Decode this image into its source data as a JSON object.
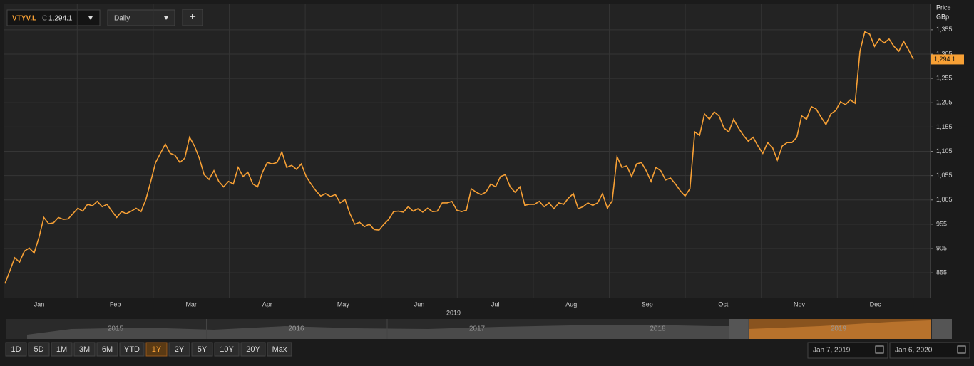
{
  "toolbar": {
    "ticker": "VTYV.L",
    "price_prefix": "C",
    "price": "1,294.1",
    "interval": "Daily",
    "add": "+"
  },
  "chart_data": {
    "type": "line",
    "y_axis_label": [
      "Price",
      "GBp"
    ],
    "x_labels": [
      "Jan",
      "Feb",
      "Mar",
      "Apr",
      "May",
      "Jun",
      "Jul",
      "Aug",
      "Sep",
      "Oct",
      "Nov",
      "Dec"
    ],
    "x_year": "2019",
    "ylim": [
      804,
      1409
    ],
    "yticks": [
      855,
      905,
      955,
      {
        "value": 1005,
        "label": "1,005"
      },
      {
        "value": 1055,
        "label": "1,055"
      },
      {
        "value": 1105,
        "label": "1,105"
      },
      {
        "value": 1155,
        "label": "1,155"
      },
      {
        "value": 1205,
        "label": "1,205"
      },
      {
        "value": 1255,
        "label": "1,255"
      },
      {
        "value": 1305,
        "label": "1,305"
      },
      {
        "value": 1355,
        "label": "1,355"
      }
    ],
    "grid": true,
    "last_label": "1,294.1",
    "series": [
      {
        "name": "VTYV.L",
        "color": "#f7a035",
        "values": [
          833,
          859,
          886,
          877,
          900,
          906,
          896,
          928,
          969,
          956,
          958,
          969,
          965,
          966,
          977,
          988,
          982,
          996,
          993,
          1002,
          991,
          996,
          982,
          969,
          981,
          977,
          982,
          988,
          981,
          1006,
          1043,
          1082,
          1101,
          1120,
          1101,
          1097,
          1082,
          1091,
          1134,
          1116,
          1091,
          1057,
          1047,
          1065,
          1043,
          1032,
          1043,
          1038,
          1072,
          1053,
          1062,
          1038,
          1032,
          1062,
          1082,
          1079,
          1082,
          1104,
          1072,
          1076,
          1068,
          1079,
          1053,
          1038,
          1024,
          1013,
          1018,
          1012,
          1016,
          999,
          1006,
          977,
          955,
          959,
          950,
          955,
          944,
          943,
          955,
          965,
          981,
          982,
          980,
          991,
          982,
          987,
          980,
          988,
          981,
          982,
          999,
          999,
          1002,
          984,
          981,
          984,
          1028,
          1021,
          1016,
          1021,
          1038,
          1032,
          1053,
          1057,
          1032,
          1021,
          1032,
          994,
          996,
          996,
          1002,
          991,
          999,
          987,
          999,
          996,
          1009,
          1018,
          987,
          991,
          999,
          994,
          999,
          1018,
          988,
          1003,
          1094,
          1072,
          1075,
          1053,
          1079,
          1082,
          1065,
          1043,
          1072,
          1065,
          1046,
          1050,
          1038,
          1024,
          1013,
          1028,
          1145,
          1138,
          1182,
          1171,
          1186,
          1178,
          1153,
          1145,
          1171,
          1153,
          1138,
          1126,
          1134,
          1116,
          1101,
          1123,
          1113,
          1087,
          1116,
          1123,
          1123,
          1134,
          1178,
          1171,
          1197,
          1192,
          1175,
          1160,
          1182,
          1189,
          1207,
          1201,
          1211,
          1204,
          1311,
          1351,
          1346,
          1321,
          1336,
          1328,
          1336,
          1321,
          1311,
          1331,
          1314,
          1294.1
        ]
      }
    ]
  },
  "navigator": {
    "years": [
      "2015",
      "2016",
      "2017",
      "2018",
      "2019"
    ]
  },
  "ranges": {
    "buttons": [
      "1D",
      "5D",
      "1M",
      "3M",
      "6M",
      "YTD",
      "1Y",
      "2Y",
      "5Y",
      "10Y",
      "20Y",
      "Max"
    ],
    "active": "1Y"
  },
  "dates": {
    "from": "Jan 7, 2019",
    "to": "Jan 6, 2020"
  }
}
